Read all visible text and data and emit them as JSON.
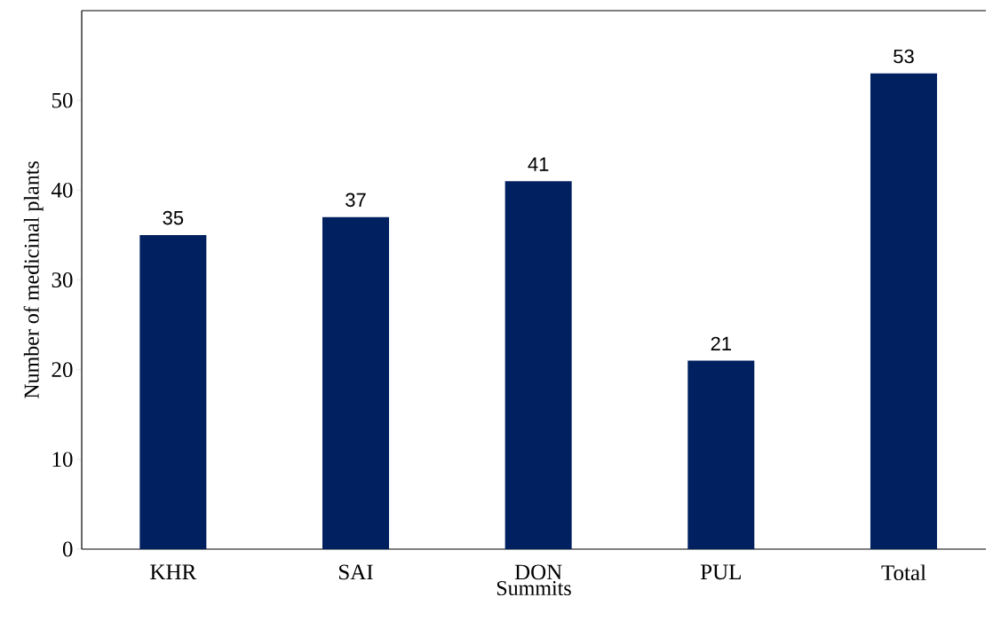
{
  "chart_data": {
    "type": "bar",
    "xlabel": "Summits",
    "ylabel": "Number of  medicinal plants",
    "categories": [
      "KHR",
      "SAI",
      "DON",
      "PUL",
      "Total"
    ],
    "values": [
      35,
      37,
      41,
      21,
      53
    ],
    "color": "#002060",
    "data_labels": true,
    "ylim": [
      0,
      60
    ],
    "yticks": [
      0,
      10,
      20,
      30,
      40,
      50
    ],
    "grid": false
  }
}
